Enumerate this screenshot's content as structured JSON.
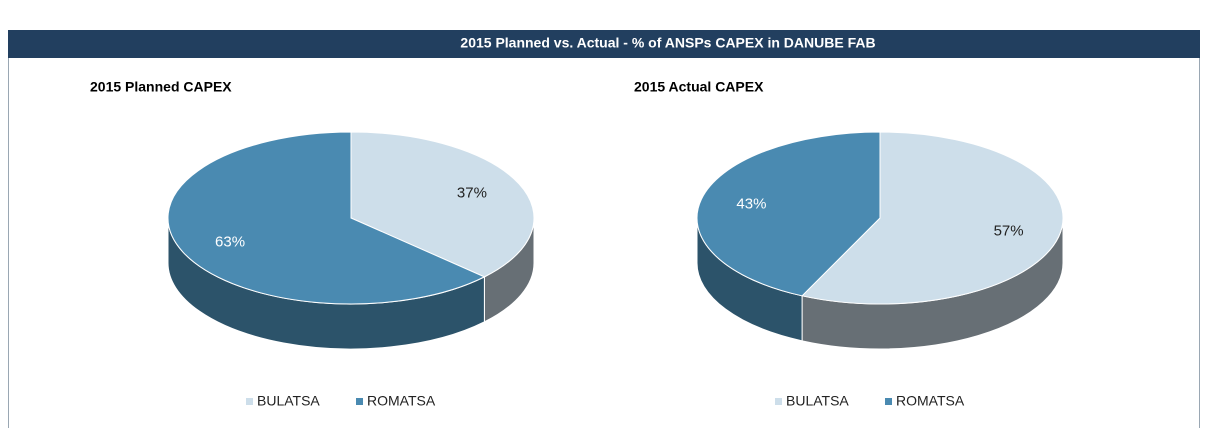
{
  "header": {
    "title": "2015 Planned vs. Actual - % of ANSPs CAPEX in DANUBE FAB"
  },
  "chart_data": [
    {
      "type": "pie",
      "title": "2015 Planned CAPEX",
      "categories": [
        "BULATSA",
        "ROMATSA"
      ],
      "values": [
        37,
        63
      ],
      "value_labels": [
        "37%",
        "63%"
      ],
      "colors": [
        "#cddeea",
        "#4a8ab1"
      ],
      "legend": "bottom"
    },
    {
      "type": "pie",
      "title": "2015 Actual CAPEX",
      "categories": [
        "BULATSA",
        "ROMATSA"
      ],
      "values": [
        57,
        43
      ],
      "value_labels": [
        "57%",
        "43%"
      ],
      "colors": [
        "#cddeea",
        "#4a8ab1"
      ],
      "legend": "bottom"
    }
  ]
}
